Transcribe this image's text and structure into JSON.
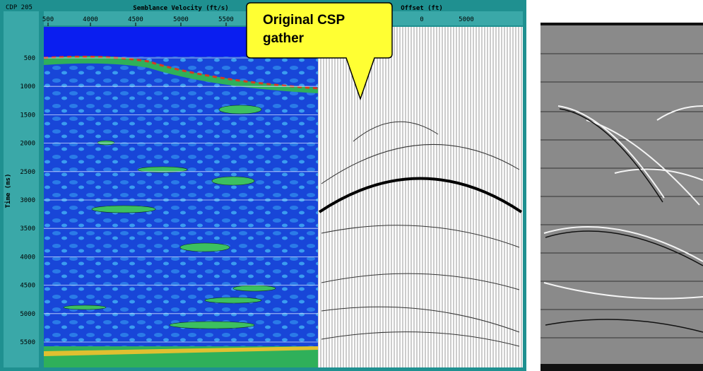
{
  "header": {
    "title": "CDP 205"
  },
  "semblance": {
    "x_axis_label": "Semblance Velocity (ft/s)",
    "x_ticks": [
      "500",
      "4000",
      "4500",
      "5000",
      "5500"
    ],
    "y_axis_label": "Time (ms)",
    "y_ticks": [
      "500",
      "1000",
      "1500",
      "2000",
      "2500",
      "3000",
      "3500",
      "4000",
      "4500",
      "5000",
      "5500"
    ]
  },
  "gather": {
    "x_axis_label": "Offset (ft)",
    "x_ticks": [
      "0",
      "5000"
    ]
  },
  "callout": {
    "text_lines": [
      "Original CSP",
      "gather"
    ]
  }
}
